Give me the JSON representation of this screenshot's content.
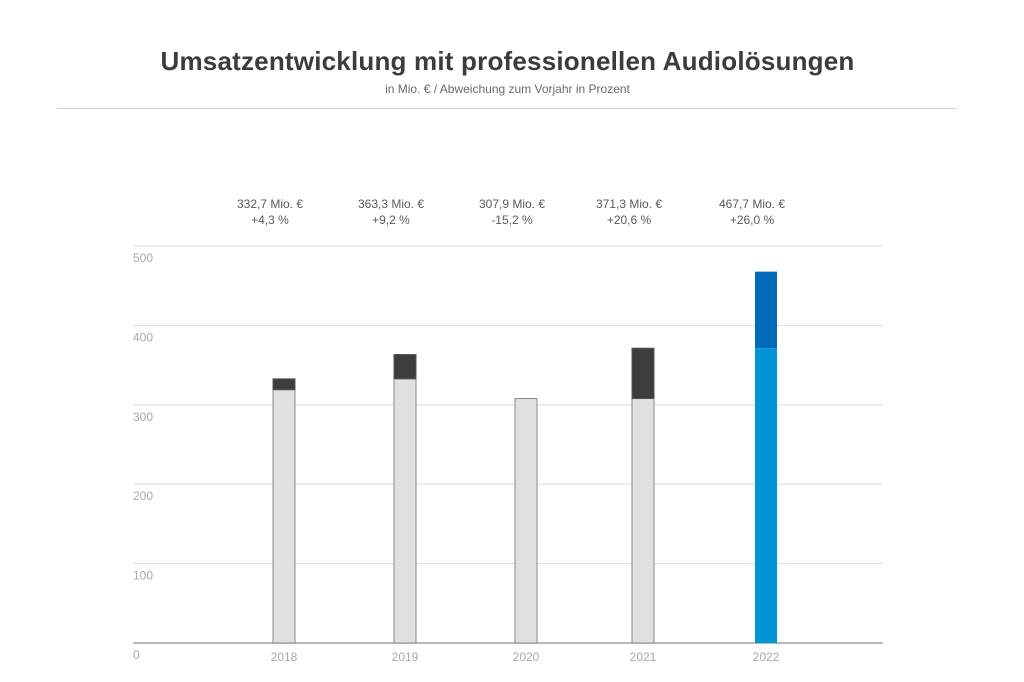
{
  "header": {
    "title": "Umsatzentwicklung mit professionellen Audiolösungen",
    "subtitle": "in Mio. € / Abweichung zum Vorjahr in Prozent"
  },
  "chart_data": {
    "type": "bar",
    "title": "Umsatzentwicklung mit professionellen Audiolösungen",
    "subtitle": "in Mio. € / Abweichung zum Vorjahr in Prozent",
    "xlabel": "",
    "ylabel": "",
    "ylim": [
      0,
      500
    ],
    "yticks": [
      0,
      100,
      200,
      300,
      400,
      500
    ],
    "ytick_labels": [
      "0",
      "100",
      "200",
      "300",
      "400",
      "500"
    ],
    "grid": true,
    "categories": [
      "2018",
      "2019",
      "2020",
      "2021",
      "2022"
    ],
    "values": [
      332.7,
      363.3,
      307.9,
      371.3,
      467.7
    ],
    "previous_year_values": [
      319.0,
      332.7,
      363.3,
      307.9,
      371.3
    ],
    "value_labels": [
      "332,7 Mio. €",
      "363,3 Mio. €",
      "307,9 Mio. €",
      "371,3 Mio. €",
      "467,7 Mio. €"
    ],
    "change_labels": [
      "+4,3 %",
      "+9,2 %",
      "-15,2 %",
      "+20,6 %",
      "+26,0 %"
    ],
    "stacking": "base segment = previous year value, top segment = increase over previous year",
    "colors": {
      "base": "#e0e0e0",
      "base_stroke": "#8a8a8a",
      "increase": "#3d3d3d",
      "highlight_base": "#0096d6",
      "highlight_increase": "#006bb8",
      "grid": "#dedede",
      "axis": "#a0a0a0"
    },
    "highlight_category": "2022"
  }
}
